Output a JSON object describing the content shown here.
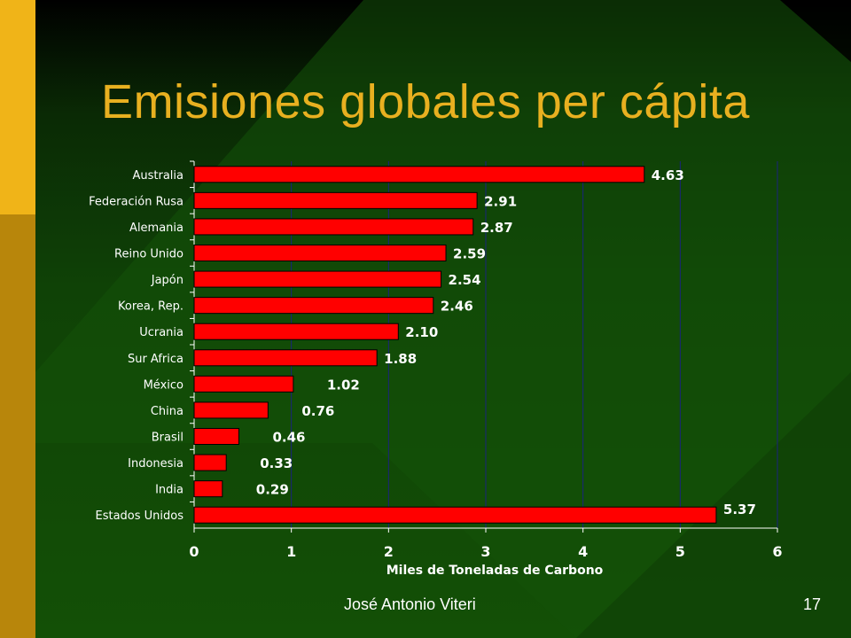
{
  "slide": {
    "title": "Emisiones globales per cápita",
    "footer_author": "José Antonio Viteri",
    "page_number": "17"
  },
  "colors": {
    "bar": "#ff0000",
    "grid": "#1a237e",
    "label": "#ffffff",
    "title": "#e8b020"
  },
  "chart_data": {
    "type": "bar",
    "orientation": "horizontal",
    "categories": [
      "Australia",
      "Federación Rusa",
      "Alemania",
      "Reino Unido",
      "Japón",
      "Korea, Rep.",
      "Ucrania",
      "Sur Africa",
      "México",
      "China",
      "Brasil",
      "Indonesia",
      "India",
      "Estados Unidos"
    ],
    "values": [
      4.63,
      2.91,
      2.87,
      2.59,
      2.54,
      2.46,
      2.1,
      1.88,
      1.02,
      0.76,
      0.46,
      0.33,
      0.29,
      5.37
    ],
    "value_labels": [
      "4.63",
      "2.91",
      "2.87",
      "2.59",
      "2.54",
      "2.46",
      "2.10",
      "1.88",
      "1.02",
      "0.76",
      "0.46",
      "0.33",
      "0.29",
      "5.37"
    ],
    "xlabel": "Miles de Toneladas de Carbono",
    "ylabel": "",
    "xlim": [
      0,
      6
    ],
    "xticks": [
      "0",
      "1",
      "2",
      "3",
      "4",
      "5",
      "6"
    ],
    "grid": true,
    "legend": false
  }
}
